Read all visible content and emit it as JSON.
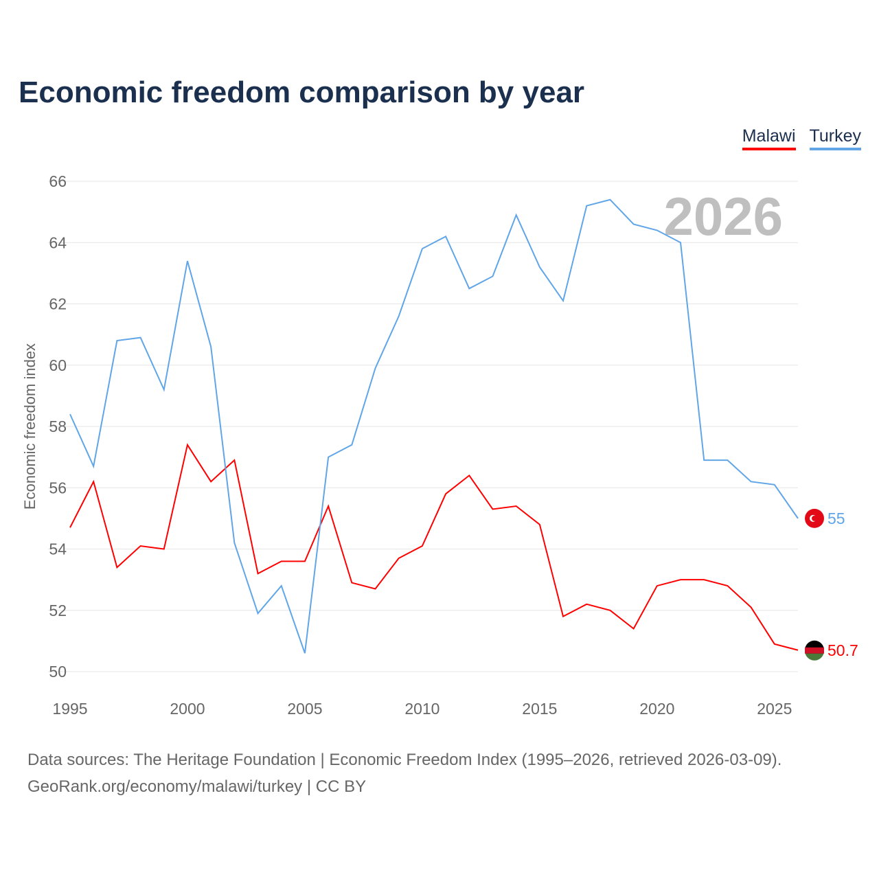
{
  "title": "Economic freedom comparison by year",
  "legend": [
    {
      "name": "Malawi",
      "color": "#ff0000"
    },
    {
      "name": "Turkey",
      "color": "#5fa5e8"
    }
  ],
  "year_label": "2026",
  "footer": {
    "line1": "Data sources: The Heritage Foundation | Economic Freedom Index (1995–2026, retrieved 2026-03-09).",
    "line2": "GeoRank.org/economy/malawi/turkey | CC BY"
  },
  "chart_data": {
    "type": "line",
    "title": "Economic freedom comparison by year",
    "xlabel": "",
    "ylabel": "Economic freedom index",
    "ylim": [
      50,
      66
    ],
    "xlim": [
      1995,
      2026
    ],
    "yticks": [
      50,
      52,
      54,
      56,
      58,
      60,
      62,
      64,
      66
    ],
    "xticks": [
      1995,
      2000,
      2005,
      2010,
      2015,
      2020,
      2025
    ],
    "grid": true,
    "legend_position": "top-right",
    "x": [
      1995,
      1996,
      1997,
      1998,
      1999,
      2000,
      2001,
      2002,
      2003,
      2004,
      2005,
      2006,
      2007,
      2008,
      2009,
      2010,
      2011,
      2012,
      2013,
      2014,
      2015,
      2016,
      2017,
      2018,
      2019,
      2020,
      2021,
      2022,
      2023,
      2024,
      2025,
      2026
    ],
    "series": [
      {
        "name": "Malawi",
        "color": "#ff0000",
        "end_label": "50.7",
        "values": [
          54.7,
          56.2,
          53.4,
          54.1,
          54.0,
          57.4,
          56.2,
          56.9,
          53.2,
          53.6,
          53.6,
          55.4,
          52.9,
          52.7,
          53.7,
          54.1,
          55.8,
          56.4,
          55.3,
          55.4,
          54.8,
          51.8,
          52.2,
          52.0,
          51.4,
          52.8,
          53.0,
          53.0,
          52.8,
          52.1,
          50.9,
          50.7
        ]
      },
      {
        "name": "Turkey",
        "color": "#5fa5e8",
        "end_label": "55",
        "values": [
          58.4,
          56.7,
          60.8,
          60.9,
          59.2,
          63.4,
          60.6,
          54.2,
          51.9,
          52.8,
          50.6,
          57.0,
          57.4,
          59.9,
          61.6,
          63.8,
          64.2,
          62.5,
          62.9,
          64.9,
          63.2,
          62.1,
          65.2,
          65.4,
          64.6,
          64.4,
          64.0,
          56.9,
          56.9,
          56.2,
          56.1,
          55.0
        ]
      }
    ]
  }
}
